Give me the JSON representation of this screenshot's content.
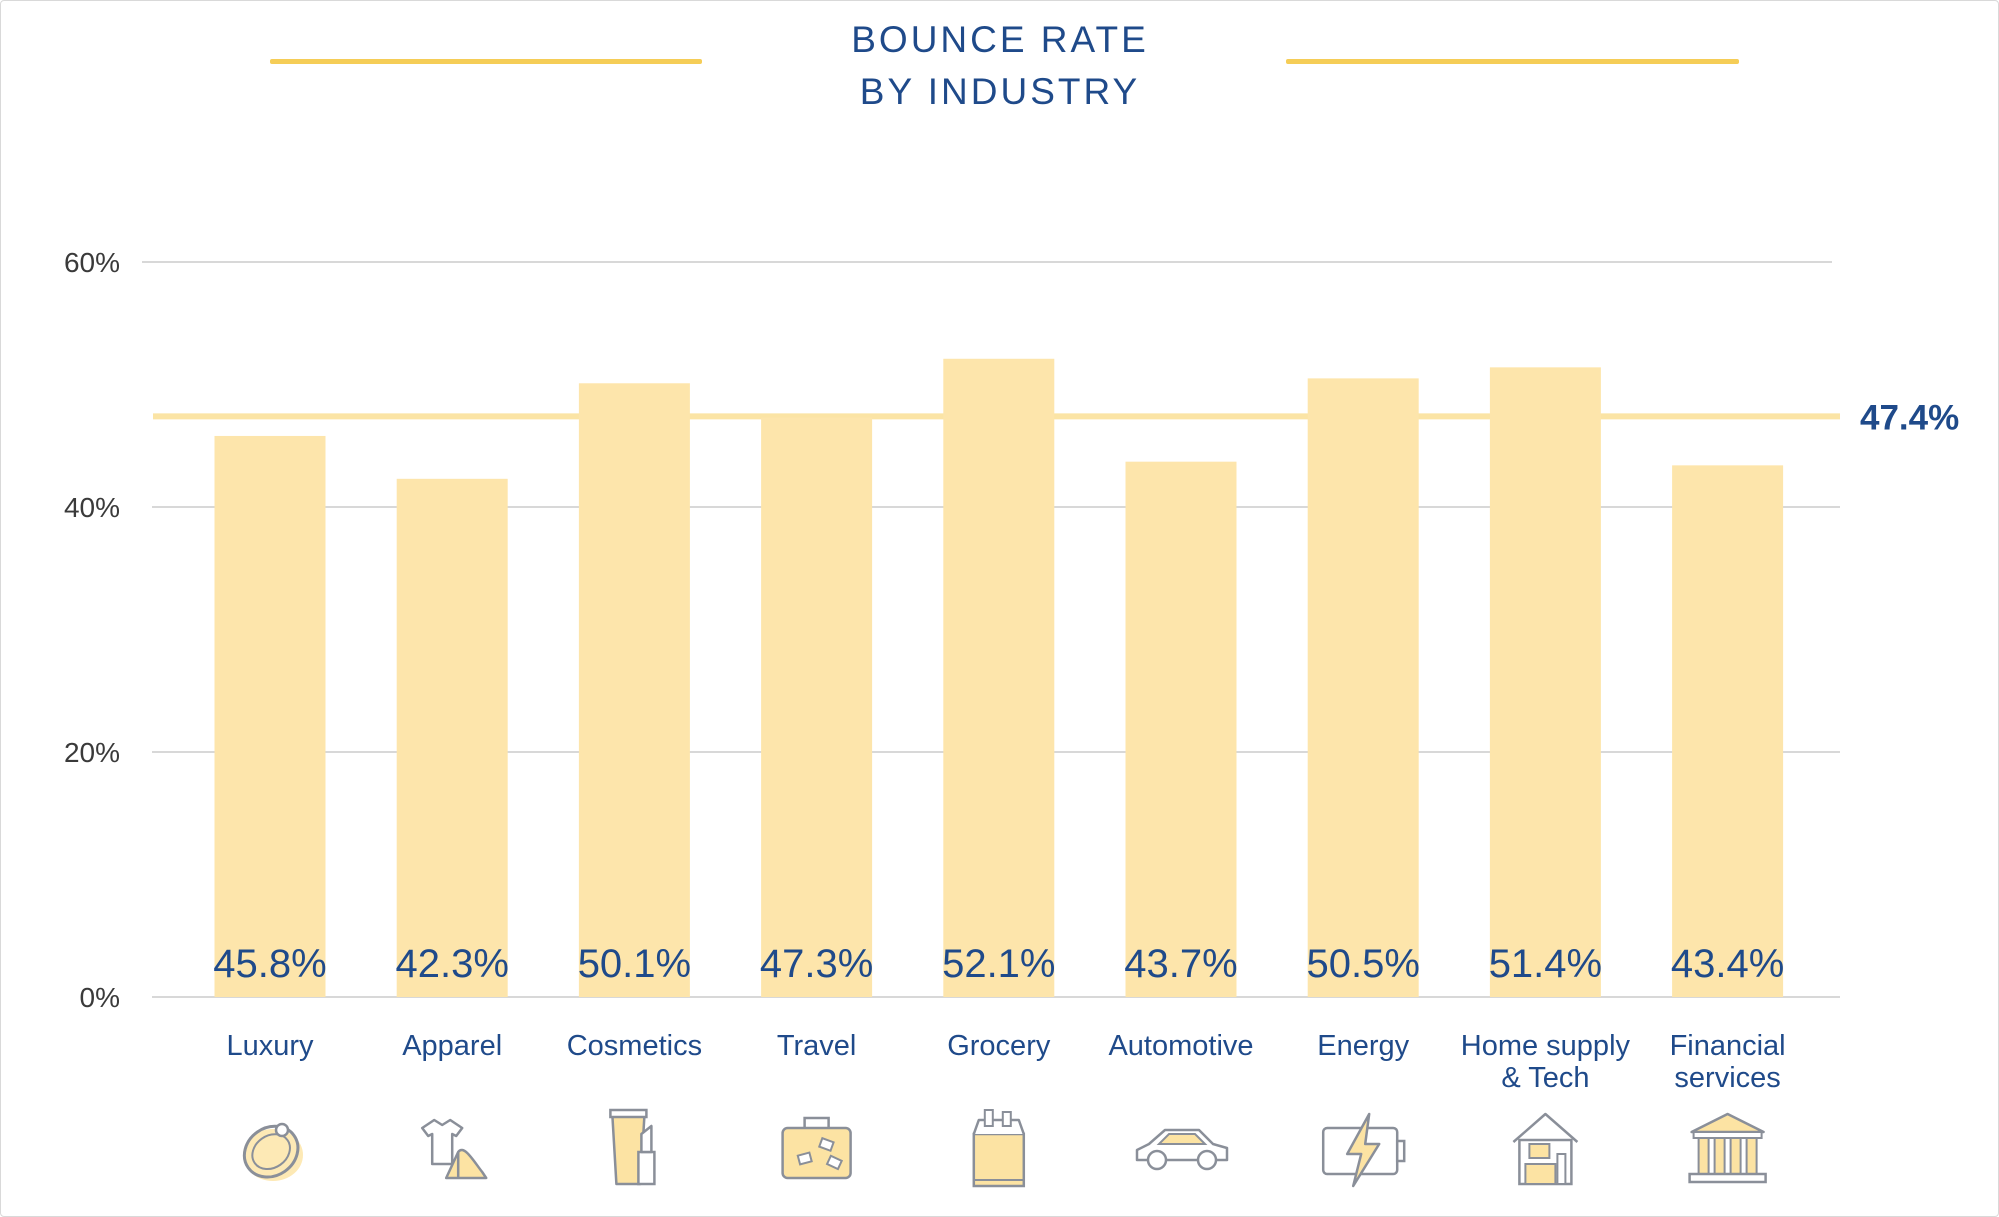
{
  "colors": {
    "bar": "#fde5ab",
    "average_line": "#fbe4a5",
    "title": "#1f4a8a",
    "grid": "#d8d8d8",
    "accent": "#f5cd57",
    "icon_stroke": "#8a8f99",
    "icon_fill": "#fce3a3"
  },
  "chart_data": {
    "type": "bar",
    "title": "BOUNCE RATE BY INDUSTRY",
    "title_lines": [
      "BOUNCE RATE",
      "BY INDUSTRY"
    ],
    "categories": [
      {
        "label": [
          "Luxury"
        ],
        "icon": "ring-icon"
      },
      {
        "label": [
          "Apparel"
        ],
        "icon": "shirt-and-heel-icon"
      },
      {
        "label": [
          "Cosmetics"
        ],
        "icon": "lipstick-icon"
      },
      {
        "label": [
          "Travel"
        ],
        "icon": "suitcase-icon"
      },
      {
        "label": [
          "Grocery"
        ],
        "icon": "grocery-bag-icon"
      },
      {
        "label": [
          "Automotive"
        ],
        "icon": "car-icon"
      },
      {
        "label": [
          "Energy"
        ],
        "icon": "battery-bolt-icon"
      },
      {
        "label": [
          "Home supply",
          "& Tech"
        ],
        "icon": "home-tech-icon"
      },
      {
        "label": [
          "Financial",
          "services"
        ],
        "icon": "bank-icon"
      }
    ],
    "values": [
      45.8,
      42.3,
      50.1,
      47.3,
      52.1,
      43.7,
      50.5,
      51.4,
      43.4
    ],
    "value_labels": [
      "45.8%",
      "42.3%",
      "50.1%",
      "47.3%",
      "52.1%",
      "43.7%",
      "50.5%",
      "51.4%",
      "43.4%"
    ],
    "ylim": [
      0,
      60
    ],
    "yticks": [
      0,
      20,
      40,
      60
    ],
    "ytick_labels": [
      "0%",
      "20%",
      "40%",
      "60%"
    ],
    "grid": true,
    "average": {
      "value": 47.4,
      "label": "47.4%"
    }
  }
}
